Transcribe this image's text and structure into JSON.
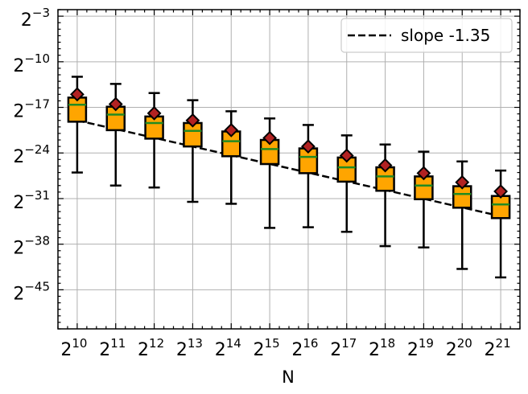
{
  "chart_data": {
    "type": "box",
    "title": "",
    "xlabel": "N",
    "ylabel": "",
    "x_scale": "log2",
    "y_scale": "log2",
    "categories": [
      "2^10",
      "2^11",
      "2^12",
      "2^13",
      "2^14",
      "2^15",
      "2^16",
      "2^17",
      "2^18",
      "2^19",
      "2^20",
      "2^21"
    ],
    "x_ticks": [
      {
        "base": "2",
        "exp": "10"
      },
      {
        "base": "2",
        "exp": "11"
      },
      {
        "base": "2",
        "exp": "12"
      },
      {
        "base": "2",
        "exp": "13"
      },
      {
        "base": "2",
        "exp": "14"
      },
      {
        "base": "2",
        "exp": "15"
      },
      {
        "base": "2",
        "exp": "16"
      },
      {
        "base": "2",
        "exp": "17"
      },
      {
        "base": "2",
        "exp": "18"
      },
      {
        "base": "2",
        "exp": "19"
      },
      {
        "base": "2",
        "exp": "20"
      },
      {
        "base": "2",
        "exp": "21"
      }
    ],
    "y_ticks": [
      {
        "value": -3,
        "base": "2",
        "exp": "−3"
      },
      {
        "value": -10,
        "base": "2",
        "exp": "−10"
      },
      {
        "value": -17,
        "base": "2",
        "exp": "−17"
      },
      {
        "value": -24,
        "base": "2",
        "exp": "−24"
      },
      {
        "value": -31,
        "base": "2",
        "exp": "−31"
      },
      {
        "value": -38,
        "base": "2",
        "exp": "−38"
      },
      {
        "value": -45,
        "base": "2",
        "exp": "−45"
      }
    ],
    "xlim_exp": [
      9.5,
      21.5
    ],
    "ylim_exp": [
      -51,
      -2
    ],
    "grid": true,
    "legend": {
      "position": "top-right",
      "entries": [
        {
          "label": "slope -1.35",
          "style": "dashed black line"
        }
      ]
    },
    "boxes": [
      {
        "x_exp": 10,
        "whisker_low": -27.0,
        "q1": -19.2,
        "median": -16.6,
        "q3": -15.5,
        "whisker_high": -12.3,
        "mean": -15.0
      },
      {
        "x_exp": 11,
        "whisker_low": -29.0,
        "q1": -20.5,
        "median": -18.1,
        "q3": -16.9,
        "whisker_high": -13.4,
        "mean": -16.5
      },
      {
        "x_exp": 12,
        "whisker_low": -29.3,
        "q1": -21.8,
        "median": -19.4,
        "q3": -18.4,
        "whisker_high": -14.8,
        "mean": -17.9
      },
      {
        "x_exp": 13,
        "whisker_low": -31.5,
        "q1": -23.0,
        "median": -20.6,
        "q3": -19.4,
        "whisker_high": -15.9,
        "mean": -19.0
      },
      {
        "x_exp": 14,
        "whisker_low": -31.8,
        "q1": -24.5,
        "median": -22.2,
        "q3": -20.7,
        "whisker_high": -17.6,
        "mean": -20.5
      },
      {
        "x_exp": 15,
        "whisker_low": -35.5,
        "q1": -25.7,
        "median": -23.4,
        "q3": -22.0,
        "whisker_high": -18.7,
        "mean": -21.7
      },
      {
        "x_exp": 16,
        "whisker_low": -35.4,
        "q1": -27.1,
        "median": -24.6,
        "q3": -23.3,
        "whisker_high": -19.7,
        "mean": -23.0
      },
      {
        "x_exp": 17,
        "whisker_low": -36.1,
        "q1": -28.4,
        "median": -26.2,
        "q3": -24.7,
        "whisker_high": -21.3,
        "mean": -24.4
      },
      {
        "x_exp": 18,
        "whisker_low": -38.3,
        "q1": -29.8,
        "median": -27.6,
        "q3": -26.2,
        "whisker_high": -22.7,
        "mean": -25.9
      },
      {
        "x_exp": 19,
        "whisker_low": -38.5,
        "q1": -31.1,
        "median": -29.0,
        "q3": -27.6,
        "whisker_high": -23.8,
        "mean": -27.1
      },
      {
        "x_exp": 20,
        "whisker_low": -41.8,
        "q1": -32.4,
        "median": -30.3,
        "q3": -29.1,
        "whisker_high": -25.3,
        "mean": -28.5
      },
      {
        "x_exp": 21,
        "whisker_low": -43.1,
        "q1": -34.0,
        "median": -31.9,
        "q3": -30.6,
        "whisker_high": -26.7,
        "mean": -29.9
      }
    ],
    "fit_line": {
      "label": "slope -1.35",
      "x_exp_start": 10,
      "y_exp_start": -19.0,
      "x_exp_end": 21,
      "y_exp_end": -33.7
    },
    "colors": {
      "box_fill": "#ffa500",
      "box_edge": "#000000",
      "median": "#228b22",
      "mean_fill": "#b22222",
      "whisker": "#000000",
      "grid": "#b0b0b0",
      "fit_line": "#000000"
    }
  }
}
